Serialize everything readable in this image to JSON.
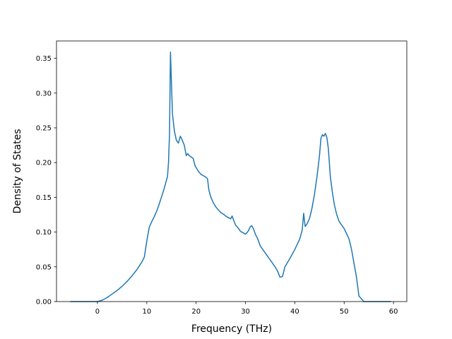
{
  "chart_data": {
    "type": "line",
    "title": "",
    "xlabel": "Frequency (THz)",
    "ylabel": "Density of States",
    "xlim": [
      -8.3,
      62.7
    ],
    "ylim": [
      0,
      0.375
    ],
    "xticks": [
      0,
      10,
      20,
      30,
      40,
      50,
      60
    ],
    "xtick_labels": [
      "0",
      "10",
      "20",
      "30",
      "40",
      "50",
      "60"
    ],
    "yticks": [
      0.0,
      0.05,
      0.1,
      0.15,
      0.2,
      0.25,
      0.3,
      0.35
    ],
    "ytick_labels": [
      "0.00",
      "0.05",
      "0.10",
      "0.15",
      "0.20",
      "0.25",
      "0.30",
      "0.35"
    ],
    "grid": false,
    "legend": "none",
    "series": [
      {
        "color": "#1f77b4",
        "x": [
          -5.5,
          -2,
          0,
          1,
          2,
          3,
          4,
          5,
          6,
          7,
          8,
          9,
          9.5,
          10,
          10.5,
          11,
          11.5,
          12,
          12.5,
          13,
          13.5,
          14,
          14.2,
          14.4,
          14.6,
          14.8,
          15.2,
          15.6,
          16,
          16.4,
          16.8,
          17.2,
          17.6,
          18,
          18.3,
          18.6,
          19,
          19.4,
          19.8,
          20.5,
          21,
          22,
          22.3,
          22.6,
          23,
          23.5,
          24,
          24.5,
          25,
          25.5,
          26,
          26.5,
          27,
          27.3,
          27.6,
          28,
          28.5,
          29,
          29.5,
          30,
          30.3,
          30.6,
          31,
          31.3,
          31.6,
          32,
          32.5,
          33,
          34,
          35,
          36,
          36.5,
          37,
          37.5,
          38,
          39,
          40,
          41,
          41.5,
          41.8,
          42.1,
          42.5,
          43,
          43.5,
          44,
          44.5,
          45,
          45.3,
          45.6,
          45.9,
          46.2,
          46.5,
          46.8,
          47.2,
          47.6,
          48,
          48.5,
          49,
          50,
          51,
          51.5,
          52,
          52.5,
          53,
          54,
          55,
          58,
          59.5
        ],
        "y": [
          0,
          0,
          0,
          0.002,
          0.006,
          0.011,
          0.016,
          0.022,
          0.029,
          0.037,
          0.046,
          0.057,
          0.064,
          0.087,
          0.107,
          0.115,
          0.122,
          0.13,
          0.14,
          0.151,
          0.162,
          0.175,
          0.18,
          0.2,
          0.24,
          0.359,
          0.27,
          0.245,
          0.232,
          0.228,
          0.238,
          0.232,
          0.225,
          0.21,
          0.213,
          0.21,
          0.208,
          0.206,
          0.195,
          0.187,
          0.183,
          0.179,
          0.177,
          0.16,
          0.15,
          0.142,
          0.136,
          0.132,
          0.128,
          0.126,
          0.123,
          0.121,
          0.119,
          0.123,
          0.117,
          0.11,
          0.106,
          0.101,
          0.099,
          0.097,
          0.099,
          0.102,
          0.108,
          0.109,
          0.105,
          0.097,
          0.09,
          0.08,
          0.07,
          0.06,
          0.05,
          0.044,
          0.035,
          0.036,
          0.05,
          0.062,
          0.075,
          0.09,
          0.103,
          0.127,
          0.108,
          0.112,
          0.12,
          0.135,
          0.155,
          0.18,
          0.21,
          0.235,
          0.24,
          0.238,
          0.242,
          0.236,
          0.22,
          0.18,
          0.158,
          0.14,
          0.125,
          0.115,
          0.105,
          0.09,
          0.075,
          0.055,
          0.035,
          0.008,
          0,
          0,
          0,
          0
        ]
      }
    ]
  }
}
